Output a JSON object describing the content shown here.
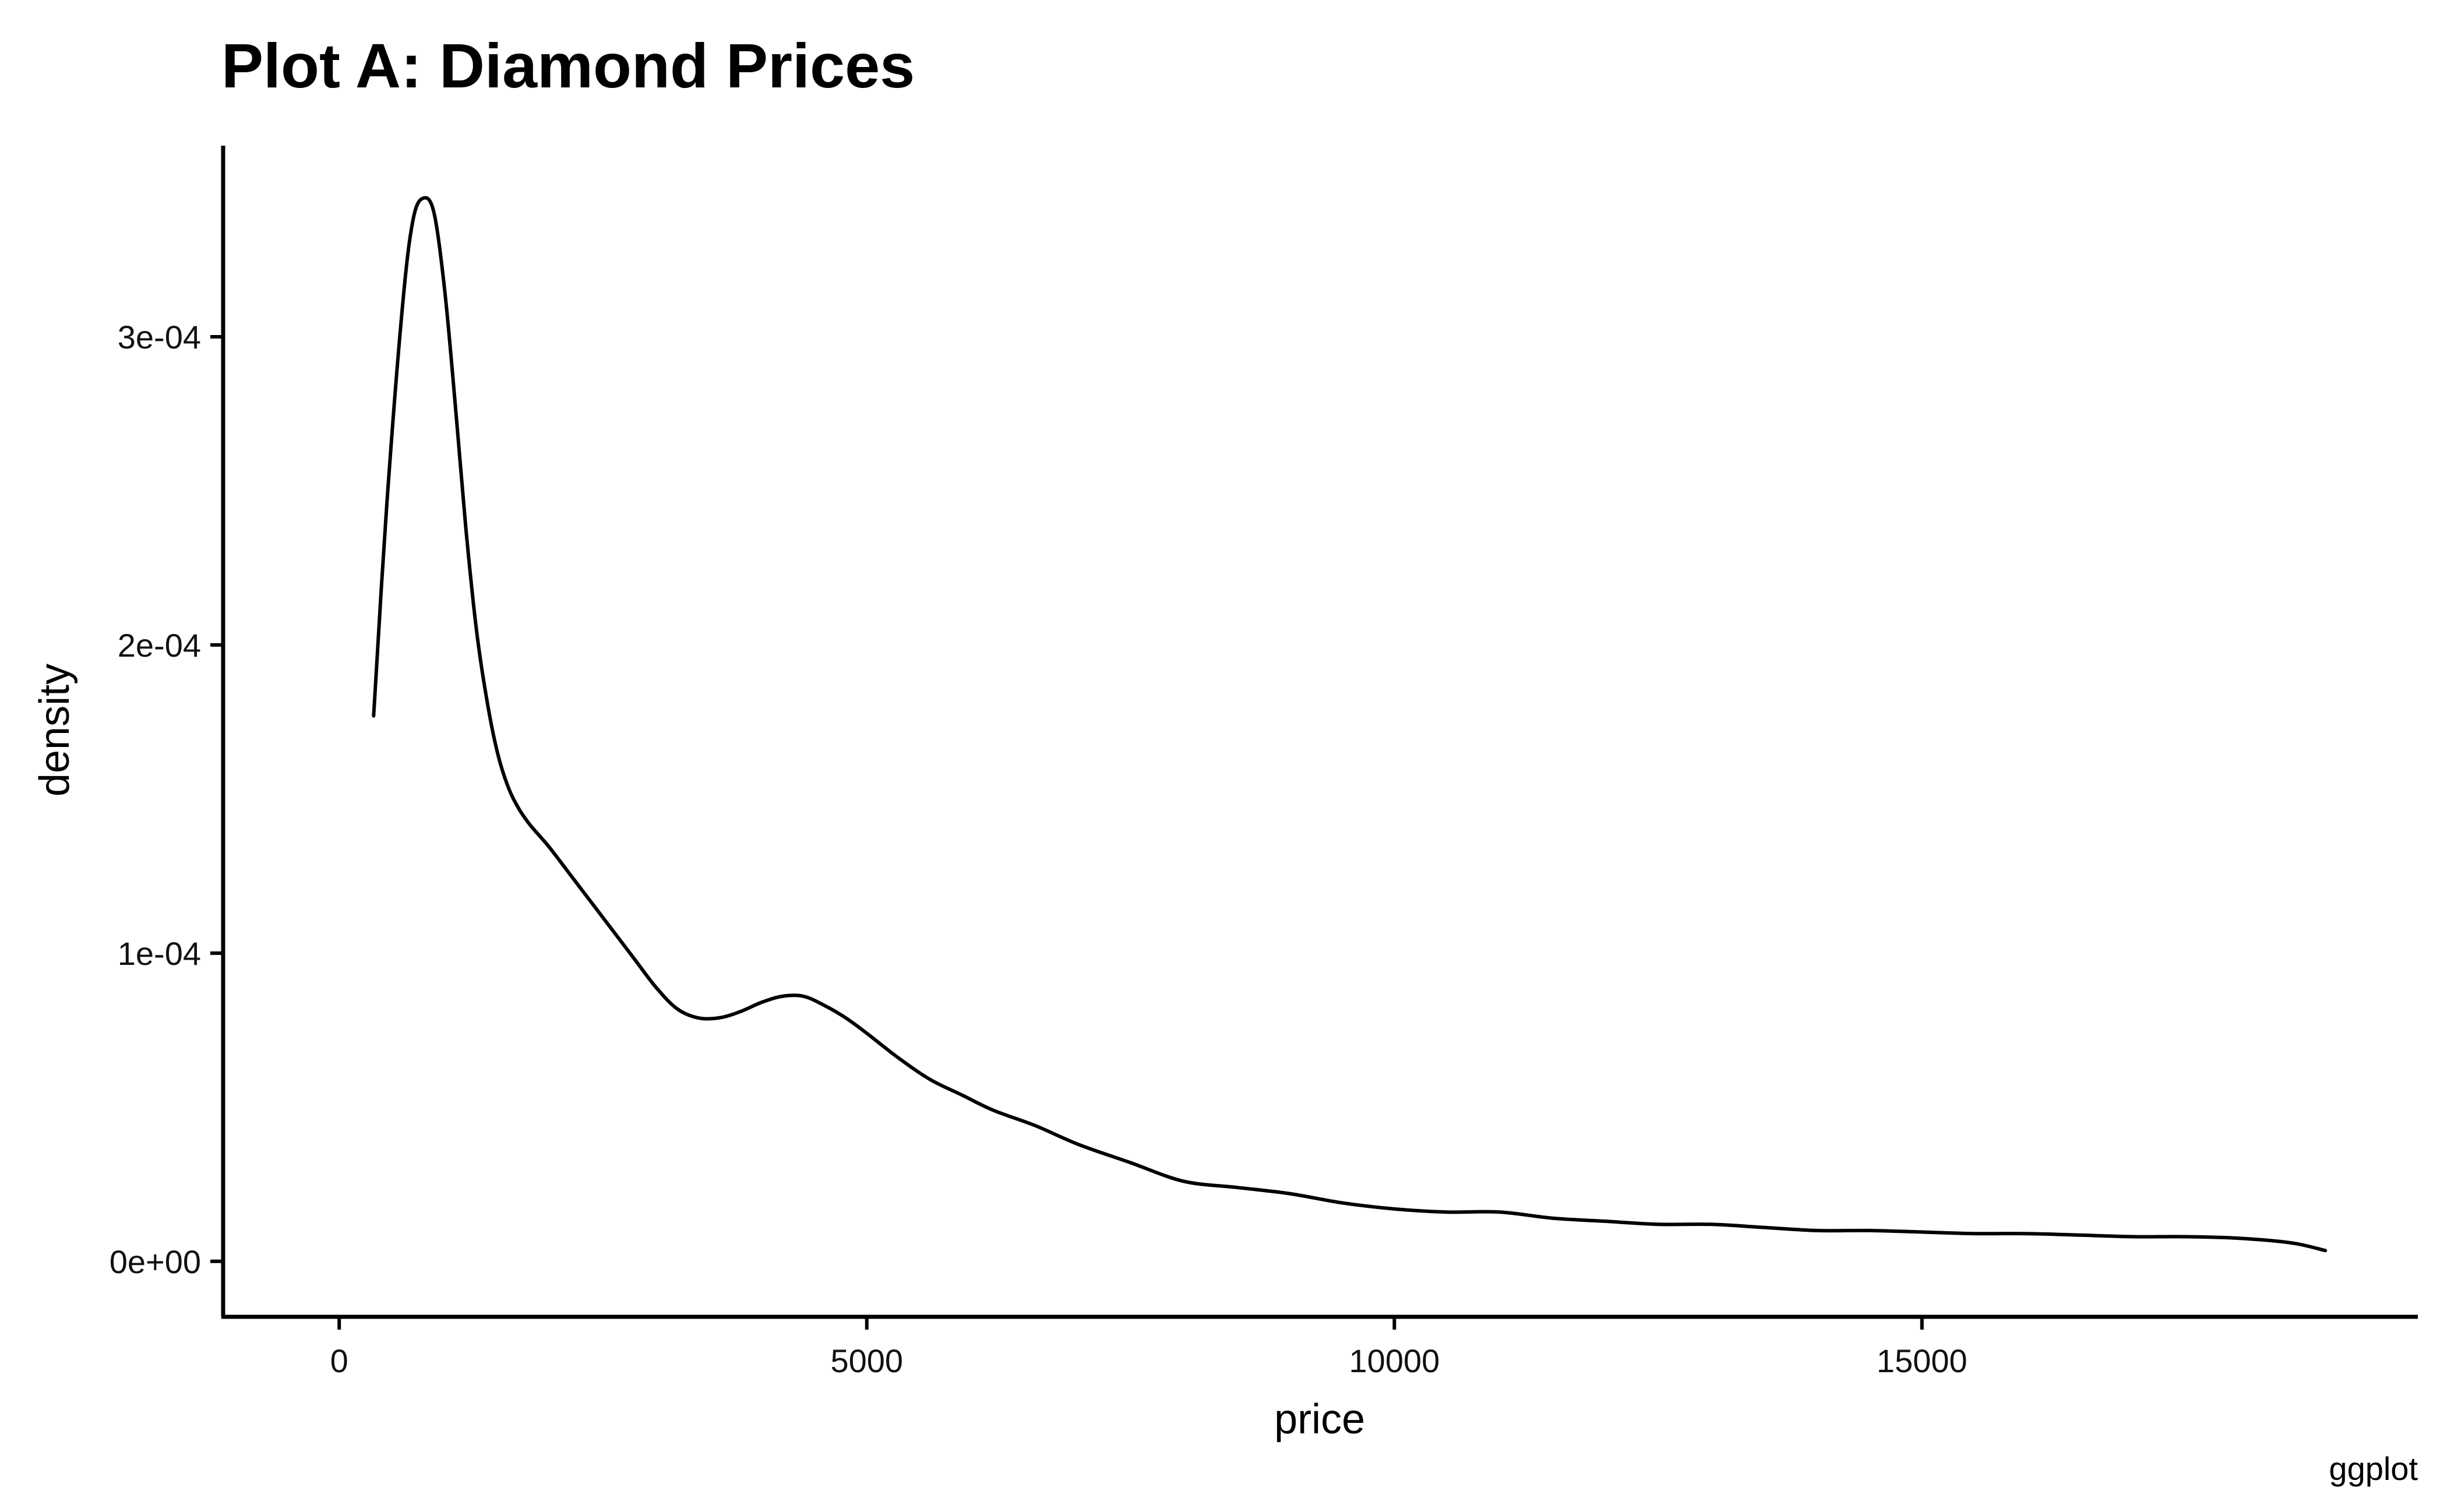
{
  "chart_data": {
    "type": "line",
    "title": "Plot A: Diamond Prices",
    "xlabel": "price",
    "ylabel": "density",
    "caption": "ggplot",
    "xlim": [
      -1100,
      19700
    ],
    "ylim": [
      -1.8e-05,
      0.000362
    ],
    "x_ticks": [
      {
        "value": 0,
        "label": "0"
      },
      {
        "value": 5000,
        "label": "5000"
      },
      {
        "value": 10000,
        "label": "10000"
      },
      {
        "value": 15000,
        "label": "15000"
      }
    ],
    "y_ticks": [
      {
        "value": 0,
        "label": "0e+00"
      },
      {
        "value": 0.0001,
        "label": "1e-04"
      },
      {
        "value": 0.0002,
        "label": "2e-04"
      },
      {
        "value": 0.0003,
        "label": "3e-04"
      }
    ],
    "grid": false,
    "legend": "none",
    "colors": {
      "line": "#000000",
      "axis": "#000000",
      "background": "#ffffff"
    },
    "series": [
      {
        "x": [
          326,
          450,
          600,
          700,
          800,
          900,
          1000,
          1100,
          1200,
          1300,
          1400,
          1500,
          1600,
          1700,
          1800,
          1900,
          2000,
          2200,
          2400,
          2600,
          2800,
          3000,
          3200,
          3400,
          3600,
          3800,
          4000,
          4200,
          4400,
          4600,
          4800,
          5000,
          5300,
          5600,
          5900,
          6200,
          6600,
          7000,
          7500,
          8000,
          8500,
          9000,
          9500,
          10000,
          10500,
          11000,
          11500,
          12000,
          12500,
          13000,
          13500,
          14000,
          14500,
          15000,
          15500,
          16000,
          16500,
          17000,
          17500,
          18000,
          18500,
          18823
        ],
        "y": [
          0.000177,
          0.000245,
          0.00031,
          0.000338,
          0.000345,
          0.00034,
          0.000315,
          0.000278,
          0.000238,
          0.000205,
          0.000182,
          0.000165,
          0.000154,
          0.000147,
          0.000142,
          0.000138,
          0.000134,
          0.000125,
          0.000116,
          0.000107,
          9.8e-05,
          8.9e-05,
          8.2e-05,
          7.9e-05,
          7.9e-05,
          8.1e-05,
          8.4e-05,
          8.6e-05,
          8.6e-05,
          8.3e-05,
          7.9e-05,
          7.4e-05,
          6.6e-05,
          5.9e-05,
          5.4e-05,
          4.9e-05,
          4.4e-05,
          3.8e-05,
          3.2e-05,
          2.6e-05,
          2.4e-05,
          2.2e-05,
          1.9e-05,
          1.7e-05,
          1.6e-05,
          1.6e-05,
          1.4e-05,
          1.3e-05,
          1.2e-05,
          1.2e-05,
          1.1e-05,
          1e-05,
          1e-05,
          9.5e-06,
          9e-06,
          9e-06,
          8.5e-06,
          8e-06,
          8e-06,
          7.5e-06,
          6e-06,
          3.5e-06
        ]
      }
    ]
  }
}
